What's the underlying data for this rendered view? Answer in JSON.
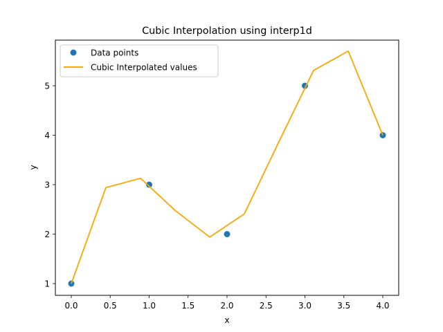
{
  "chart_data": {
    "type": "line",
    "title": "Cubic Interpolation using interp1d",
    "xlabel": "x",
    "ylabel": "y",
    "xlim": [
      -0.2,
      4.2
    ],
    "ylim": [
      0.76,
      5.93
    ],
    "xticks": [
      "0.0",
      "0.5",
      "1.0",
      "1.5",
      "2.0",
      "2.5",
      "3.0",
      "3.5",
      "4.0"
    ],
    "yticks": [
      "1",
      "2",
      "3",
      "4",
      "5"
    ],
    "grid": false,
    "legend_position": "upper left",
    "series": [
      {
        "name": "Data points",
        "kind": "scatter",
        "color": "#1f77b4",
        "x": [
          0,
          1,
          2,
          3,
          4
        ],
        "y": [
          1,
          3,
          2,
          5,
          4
        ]
      },
      {
        "name": "Cubic Interpolated values",
        "kind": "line",
        "color": "#ffa500",
        "x": [
          0.0,
          0.444,
          0.889,
          1.333,
          1.778,
          2.222,
          2.667,
          3.111,
          3.556,
          4.0
        ],
        "y": [
          1.0,
          2.94,
          3.13,
          2.48,
          1.94,
          2.41,
          3.87,
          5.31,
          5.7,
          4.0
        ]
      }
    ]
  },
  "legend": {
    "items": [
      {
        "label": "Data points"
      },
      {
        "label": "Cubic Interpolated values"
      }
    ]
  }
}
